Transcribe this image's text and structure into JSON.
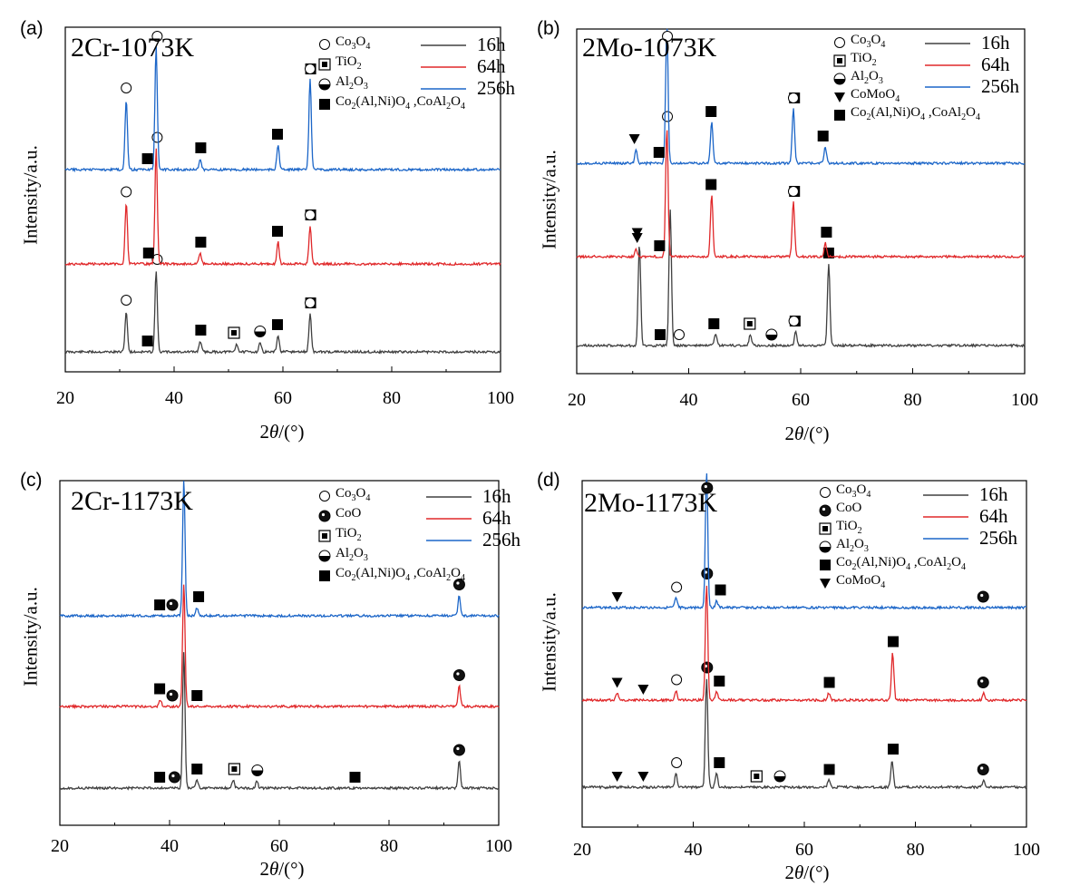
{
  "chart_data": [
    {
      "type": "line",
      "panel_label": "(a)",
      "title": "2Cr-1073K",
      "xlabel": "2θ/(°)",
      "ylabel": "Intensity/a.u.",
      "xlim": [
        20,
        100
      ],
      "xticks": [
        "20",
        "40",
        "60",
        "80",
        "100"
      ],
      "legend_position": "top-right",
      "phase_legend": [
        {
          "symbol": "open-circle",
          "label": "Co3O4"
        },
        {
          "symbol": "boxed-square",
          "label": "TiO2"
        },
        {
          "symbol": "half-circle",
          "label": "Al2O3"
        },
        {
          "symbol": "filled-square",
          "label": "Co2(Al,Ni)O4 ,CoAl2O4"
        }
      ],
      "series": [
        {
          "name": "16h",
          "color": "#404040",
          "peaks": [
            {
              "x": 31.2,
              "h": 0.3
            },
            {
              "x": 36.7,
              "h": 0.6
            },
            {
              "x": 44.8,
              "h": 0.08
            },
            {
              "x": 51.5,
              "h": 0.06
            },
            {
              "x": 55.8,
              "h": 0.07
            },
            {
              "x": 59.1,
              "h": 0.12
            },
            {
              "x": 65.0,
              "h": 0.28
            }
          ],
          "markers": [
            {
              "x": 31.2,
              "symbol": "open-circle"
            },
            {
              "x": 35.1,
              "symbol": "filled-square"
            },
            {
              "x": 36.9,
              "symbol": "open-circle"
            },
            {
              "x": 44.9,
              "symbol": "filled-square"
            },
            {
              "x": 51.0,
              "symbol": "boxed-square"
            },
            {
              "x": 55.8,
              "symbol": "half-circle"
            },
            {
              "x": 59.0,
              "symbol": "filled-square"
            },
            {
              "x": 65.1,
              "symbol": "filled-square"
            },
            {
              "x": 65.0,
              "symbol": "open-circle"
            }
          ]
        },
        {
          "name": "64h",
          "color": "#e0282a",
          "peaks": [
            {
              "x": 31.2,
              "h": 0.45
            },
            {
              "x": 36.7,
              "h": 0.85
            },
            {
              "x": 44.8,
              "h": 0.08
            },
            {
              "x": 59.1,
              "h": 0.16
            },
            {
              "x": 65.0,
              "h": 0.28
            }
          ],
          "markers": [
            {
              "x": 31.2,
              "symbol": "open-circle"
            },
            {
              "x": 35.3,
              "symbol": "filled-square"
            },
            {
              "x": 36.9,
              "symbol": "open-circle"
            },
            {
              "x": 44.9,
              "symbol": "filled-square"
            },
            {
              "x": 59.0,
              "symbol": "filled-square"
            },
            {
              "x": 65.1,
              "symbol": "filled-square"
            },
            {
              "x": 65.0,
              "symbol": "open-circle"
            }
          ]
        },
        {
          "name": "256h",
          "color": "#1c66c8",
          "peaks": [
            {
              "x": 31.2,
              "h": 0.52
            },
            {
              "x": 36.7,
              "h": 0.9
            },
            {
              "x": 44.8,
              "h": 0.08
            },
            {
              "x": 59.1,
              "h": 0.18
            },
            {
              "x": 65.0,
              "h": 0.66
            }
          ],
          "markers": [
            {
              "x": 31.2,
              "symbol": "open-circle"
            },
            {
              "x": 35.1,
              "symbol": "filled-square"
            },
            {
              "x": 36.9,
              "symbol": "open-circle"
            },
            {
              "x": 44.9,
              "symbol": "filled-square"
            },
            {
              "x": 59.0,
              "symbol": "filled-square"
            },
            {
              "x": 65.1,
              "symbol": "filled-square"
            },
            {
              "x": 65.0,
              "symbol": "open-circle"
            }
          ]
        }
      ]
    },
    {
      "type": "line",
      "panel_label": "(b)",
      "title": "2Mo-1073K",
      "xlabel": "2θ/(°)",
      "ylabel": "Intensity/a.u.",
      "xlim": [
        20,
        100
      ],
      "xticks": [
        "20",
        "40",
        "60",
        "80",
        "100"
      ],
      "legend_position": "top-right",
      "phase_legend": [
        {
          "symbol": "open-circle",
          "label": "Co3O4"
        },
        {
          "symbol": "boxed-square",
          "label": "TiO2"
        },
        {
          "symbol": "half-circle",
          "label": "Al2O3"
        },
        {
          "symbol": "filled-triangle",
          "label": "CoMoO4"
        },
        {
          "symbol": "filled-square",
          "label": "Co2(Al,Ni)O4 ,CoAl2O4"
        }
      ],
      "series": [
        {
          "name": "16h",
          "color": "#404040",
          "peaks": [
            {
              "x": 31.2,
              "h": 0.75
            },
            {
              "x": 36.7,
              "h": 1.0
            },
            {
              "x": 44.8,
              "h": 0.08
            },
            {
              "x": 51.0,
              "h": 0.08
            },
            {
              "x": 59.1,
              "h": 0.1
            },
            {
              "x": 65.0,
              "h": 0.6
            }
          ],
          "markers": [
            {
              "x": 30.8,
              "symbol": "filled-triangle"
            },
            {
              "x": 34.9,
              "symbol": "filled-square"
            },
            {
              "x": 38.3,
              "symbol": "open-circle"
            },
            {
              "x": 44.5,
              "symbol": "filled-square"
            },
            {
              "x": 50.9,
              "symbol": "boxed-square"
            },
            {
              "x": 54.8,
              "symbol": "half-circle"
            },
            {
              "x": 59.0,
              "symbol": "filled-square"
            },
            {
              "x": 58.8,
              "symbol": "open-circle"
            },
            {
              "x": 65.0,
              "symbol": "filled-square"
            }
          ]
        },
        {
          "name": "64h",
          "color": "#e0282a",
          "peaks": [
            {
              "x": 30.6,
              "h": 0.06
            },
            {
              "x": 36.1,
              "h": 0.95
            },
            {
              "x": 44.1,
              "h": 0.45
            },
            {
              "x": 58.7,
              "h": 0.4
            },
            {
              "x": 64.4,
              "h": 0.1
            }
          ],
          "markers": [
            {
              "x": 30.8,
              "symbol": "filled-triangle"
            },
            {
              "x": 34.8,
              "symbol": "filled-square"
            },
            {
              "x": 36.2,
              "symbol": "open-circle"
            },
            {
              "x": 44.0,
              "symbol": "filled-square"
            },
            {
              "x": 58.9,
              "symbol": "filled-square"
            },
            {
              "x": 58.7,
              "symbol": "open-circle"
            },
            {
              "x": 64.6,
              "symbol": "filled-square"
            }
          ]
        },
        {
          "name": "256h",
          "color": "#1c66c8",
          "peaks": [
            {
              "x": 30.6,
              "h": 0.1
            },
            {
              "x": 36.1,
              "h": 1.0
            },
            {
              "x": 44.1,
              "h": 0.3
            },
            {
              "x": 58.7,
              "h": 0.4
            },
            {
              "x": 64.4,
              "h": 0.12
            }
          ],
          "markers": [
            {
              "x": 30.3,
              "symbol": "filled-triangle"
            },
            {
              "x": 34.7,
              "symbol": "filled-square"
            },
            {
              "x": 36.2,
              "symbol": "open-circle"
            },
            {
              "x": 44.0,
              "symbol": "filled-square"
            },
            {
              "x": 58.9,
              "symbol": "filled-square"
            },
            {
              "x": 58.7,
              "symbol": "open-circle"
            },
            {
              "x": 64.0,
              "symbol": "filled-square"
            }
          ]
        }
      ]
    },
    {
      "type": "line",
      "panel_label": "(c)",
      "title": "2Cr-1173K",
      "xlabel": "2θ/(°)",
      "ylabel": "Intensity/a.u.",
      "xlim": [
        20,
        100
      ],
      "xticks": [
        "20",
        "40",
        "60",
        "80",
        "100"
      ],
      "legend_position": "top-right",
      "phase_legend": [
        {
          "symbol": "open-circle",
          "label": "Co3O4"
        },
        {
          "symbol": "filled-circle",
          "label": "CoO"
        },
        {
          "symbol": "boxed-square",
          "label": "TiO2"
        },
        {
          "symbol": "half-circle",
          "label": "Al2O3"
        },
        {
          "symbol": "filled-square",
          "label": "Co2(Al,Ni)O4 ,CoAl2O4"
        }
      ],
      "series": [
        {
          "name": "16h",
          "color": "#404040",
          "peaks": [
            {
              "x": 42.6,
              "h": 1.0
            },
            {
              "x": 45.0,
              "h": 0.06
            },
            {
              "x": 51.6,
              "h": 0.06
            },
            {
              "x": 55.9,
              "h": 0.05
            },
            {
              "x": 92.8,
              "h": 0.2
            }
          ],
          "markers": [
            {
              "x": 40.9,
              "symbol": "filled-circle"
            },
            {
              "x": 38.2,
              "symbol": "filled-square"
            },
            {
              "x": 45.0,
              "symbol": "filled-square"
            },
            {
              "x": 51.8,
              "symbol": "boxed-square"
            },
            {
              "x": 56.0,
              "symbol": "half-circle"
            },
            {
              "x": 73.8,
              "symbol": "filled-square"
            },
            {
              "x": 92.8,
              "symbol": "filled-circle"
            }
          ]
        },
        {
          "name": "64h",
          "color": "#e0282a",
          "peaks": [
            {
              "x": 42.6,
              "h": 0.9
            },
            {
              "x": 38.3,
              "h": 0.05
            },
            {
              "x": 92.8,
              "h": 0.15
            }
          ],
          "markers": [
            {
              "x": 40.5,
              "symbol": "filled-circle"
            },
            {
              "x": 38.2,
              "symbol": "filled-square"
            },
            {
              "x": 45.0,
              "symbol": "filled-square"
            },
            {
              "x": 92.8,
              "symbol": "filled-circle"
            }
          ]
        },
        {
          "name": "256h",
          "color": "#1c66c8",
          "peaks": [
            {
              "x": 42.6,
              "h": 1.0
            },
            {
              "x": 45.0,
              "h": 0.06
            },
            {
              "x": 92.8,
              "h": 0.15
            }
          ],
          "markers": [
            {
              "x": 40.5,
              "symbol": "filled-circle"
            },
            {
              "x": 38.2,
              "symbol": "filled-square"
            },
            {
              "x": 45.3,
              "symbol": "filled-square"
            },
            {
              "x": 92.8,
              "symbol": "filled-circle"
            }
          ]
        }
      ]
    },
    {
      "type": "line",
      "panel_label": "(d)",
      "title": "2Mo-1173K",
      "xlabel": "2θ/(°)",
      "ylabel": "Intensity/a.u.",
      "xlim": [
        20,
        100
      ],
      "xticks": [
        "20",
        "40",
        "60",
        "80",
        "100"
      ],
      "legend_position": "top-right",
      "phase_legend": [
        {
          "symbol": "open-circle",
          "label": "Co3O4"
        },
        {
          "symbol": "filled-circle",
          "label": "CoO"
        },
        {
          "symbol": "boxed-square",
          "label": "TiO2"
        },
        {
          "symbol": "half-circle",
          "label": "Al2O3"
        },
        {
          "symbol": "filled-square",
          "label": "Co2(Al,Ni)O4 ,CoAl2O4"
        },
        {
          "symbol": "filled-triangle",
          "label": "CoMoO4"
        }
      ],
      "series": [
        {
          "name": "16h",
          "color": "#404040",
          "peaks": [
            {
              "x": 36.9,
              "h": 0.1
            },
            {
              "x": 42.4,
              "h": 0.8
            },
            {
              "x": 44.2,
              "h": 0.1
            },
            {
              "x": 64.4,
              "h": 0.05
            },
            {
              "x": 75.8,
              "h": 0.2
            },
            {
              "x": 92.3,
              "h": 0.05
            }
          ],
          "markers": [
            {
              "x": 26.3,
              "symbol": "filled-triangle"
            },
            {
              "x": 31.0,
              "symbol": "filled-triangle"
            },
            {
              "x": 37.0,
              "symbol": "open-circle"
            },
            {
              "x": 42.5,
              "symbol": "filled-circle"
            },
            {
              "x": 44.7,
              "symbol": "filled-square"
            },
            {
              "x": 51.4,
              "symbol": "boxed-square"
            },
            {
              "x": 55.6,
              "symbol": "half-circle"
            },
            {
              "x": 64.5,
              "symbol": "filled-square"
            },
            {
              "x": 76.0,
              "symbol": "filled-square"
            },
            {
              "x": 92.2,
              "symbol": "filled-circle"
            }
          ]
        },
        {
          "name": "64h",
          "color": "#e0282a",
          "peaks": [
            {
              "x": 26.3,
              "h": 0.05
            },
            {
              "x": 36.9,
              "h": 0.07
            },
            {
              "x": 42.4,
              "h": 0.85
            },
            {
              "x": 44.2,
              "h": 0.06
            },
            {
              "x": 64.4,
              "h": 0.05
            },
            {
              "x": 75.9,
              "h": 0.35
            },
            {
              "x": 92.3,
              "h": 0.05
            }
          ],
          "markers": [
            {
              "x": 26.3,
              "symbol": "filled-triangle"
            },
            {
              "x": 31.0,
              "symbol": "filled-triangle"
            },
            {
              "x": 37.0,
              "symbol": "open-circle"
            },
            {
              "x": 42.5,
              "symbol": "filled-circle"
            },
            {
              "x": 44.7,
              "symbol": "filled-square"
            },
            {
              "x": 64.5,
              "symbol": "filled-square"
            },
            {
              "x": 76.0,
              "symbol": "filled-square"
            },
            {
              "x": 92.2,
              "symbol": "filled-circle"
            }
          ]
        },
        {
          "name": "256h",
          "color": "#1c66c8",
          "peaks": [
            {
              "x": 36.9,
              "h": 0.07
            },
            {
              "x": 42.4,
              "h": 1.0
            },
            {
              "x": 44.2,
              "h": 0.05
            }
          ],
          "markers": [
            {
              "x": 26.3,
              "symbol": "filled-triangle"
            },
            {
              "x": 37.0,
              "symbol": "open-circle"
            },
            {
              "x": 42.5,
              "symbol": "filled-circle"
            },
            {
              "x": 44.9,
              "symbol": "filled-square"
            },
            {
              "x": 92.2,
              "symbol": "filled-circle"
            }
          ]
        }
      ]
    }
  ]
}
